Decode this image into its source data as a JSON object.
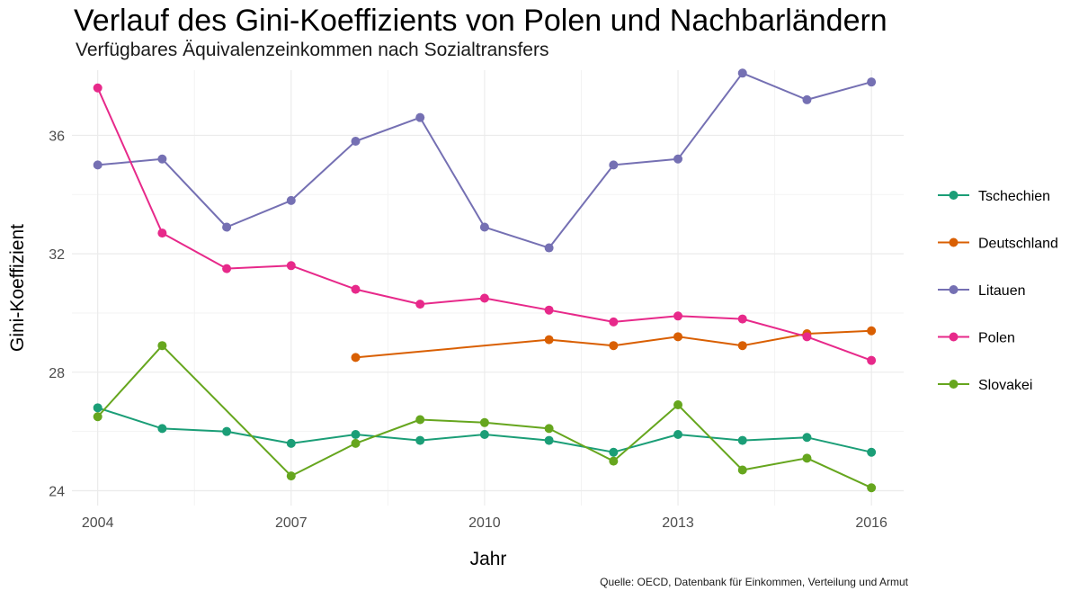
{
  "chart_data": {
    "type": "line",
    "title": "Verlauf des Gini-Koeffizients von Polen und Nachbarländern",
    "subtitle": "Verfügbares Äquivalenzeinkommen nach Sozialtransfers",
    "caption": "Quelle: OECD, Datenbank für Einkommen, Verteilung und Armut",
    "xlabel": "Jahr",
    "ylabel": "Gini-Koeffizient",
    "xlim": [
      2003.6,
      2016.5
    ],
    "ylim": [
      23.5,
      38.2
    ],
    "x_ticks": [
      2004,
      2007,
      2010,
      2013,
      2016
    ],
    "y_ticks": [
      24,
      28,
      32,
      36
    ],
    "grid": true,
    "legend_position": "right",
    "series": [
      {
        "name": "Tschechien",
        "color": "#1b9e77",
        "x": [
          2004,
          2005,
          2006,
          2007,
          2008,
          2009,
          2010,
          2011,
          2012,
          2013,
          2014,
          2015,
          2016
        ],
        "values": [
          26.8,
          26.1,
          26.0,
          25.6,
          25.9,
          25.7,
          25.9,
          25.7,
          25.3,
          25.9,
          25.7,
          25.8,
          25.3
        ]
      },
      {
        "name": "Deutschland",
        "color": "#d95f02",
        "x": [
          2008,
          2011,
          2012,
          2013,
          2014,
          2015,
          2016
        ],
        "values": [
          28.5,
          29.1,
          28.9,
          29.2,
          28.9,
          29.3,
          29.4
        ]
      },
      {
        "name": "Litauen",
        "color": "#7570b3",
        "x": [
          2004,
          2005,
          2006,
          2007,
          2008,
          2009,
          2010,
          2011,
          2012,
          2013,
          2014,
          2015,
          2016
        ],
        "values": [
          35.0,
          35.2,
          32.9,
          33.8,
          35.8,
          36.6,
          32.9,
          32.2,
          35.0,
          35.2,
          38.1,
          37.2,
          37.8
        ]
      },
      {
        "name": "Polen",
        "color": "#e7298a",
        "x": [
          2004,
          2005,
          2006,
          2007,
          2008,
          2009,
          2010,
          2011,
          2012,
          2013,
          2014,
          2015,
          2016
        ],
        "values": [
          37.6,
          32.7,
          31.5,
          31.6,
          30.8,
          30.3,
          30.5,
          30.1,
          29.7,
          29.9,
          29.8,
          29.2,
          28.4
        ]
      },
      {
        "name": "Slovakei",
        "color": "#66a61e",
        "x": [
          2004,
          2005,
          2007,
          2008,
          2009,
          2010,
          2011,
          2012,
          2013,
          2014,
          2015,
          2016
        ],
        "values": [
          26.5,
          28.9,
          24.5,
          25.6,
          26.4,
          26.3,
          26.1,
          25.0,
          26.9,
          24.7,
          25.1,
          24.1
        ]
      }
    ]
  }
}
